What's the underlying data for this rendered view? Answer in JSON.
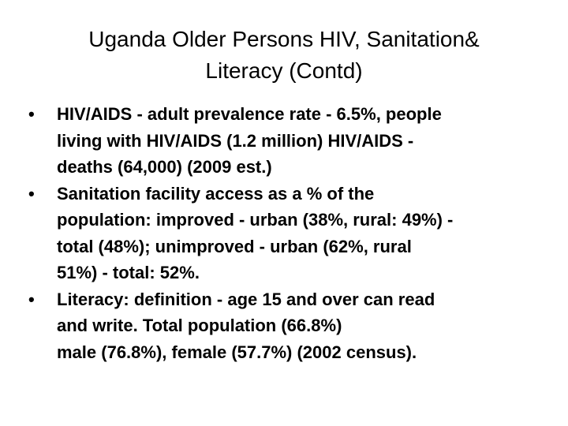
{
  "slide": {
    "title_lines": [
      "Uganda Older Persons HIV, Sanitation&",
      "Literacy (Contd)"
    ],
    "bullet_symbol": "•",
    "bullets": [
      {
        "lines": [
          "HIV/AIDS - adult prevalence rate - 6.5%,  people",
          "living with HIV/AIDS (1.2 million) HIV/AIDS -",
          "deaths (64,000) (2009 est.)"
        ]
      },
      {
        "lines": [
          "Sanitation facility access as a % of the",
          "population: improved - urban (38%, rural: 49%) -",
          "total (48%); unimproved - urban (62%, rural",
          "51%) - total: 52%."
        ]
      },
      {
        "lines": [
          "Literacy: definition - age 15 and over can read",
          "and write. Total population (66.8%)",
          "male (76.8%), female (57.7%) (2002 census)."
        ]
      }
    ]
  }
}
